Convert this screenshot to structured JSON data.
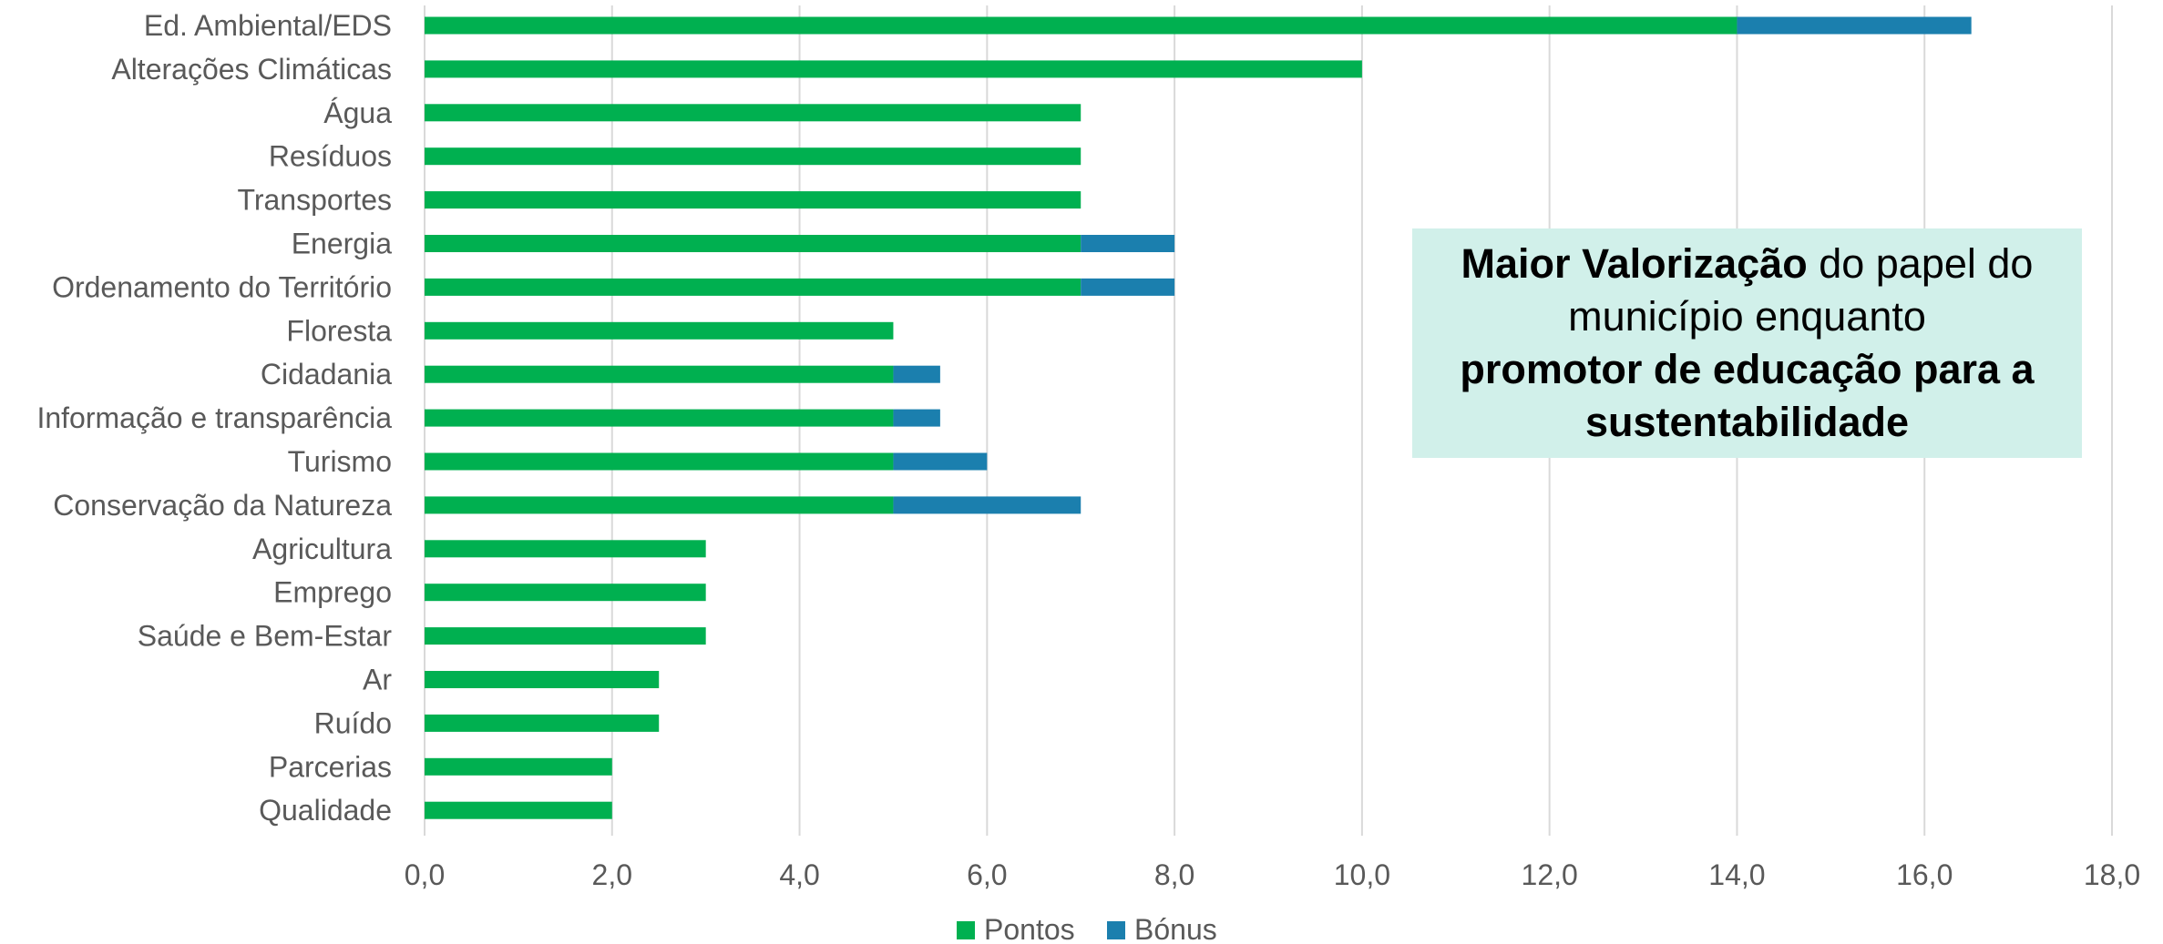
{
  "chart_data": {
    "type": "bar",
    "orientation": "horizontal",
    "stacked": true,
    "categories": [
      "Ed. Ambiental/EDS",
      "Alterações Climáticas",
      "Água",
      "Resíduos",
      "Transportes",
      "Energia",
      "Ordenamento do Território",
      "Floresta",
      "Cidadania",
      "Informação e transparência",
      "Turismo",
      "Conservação da Natureza",
      "Agricultura",
      "Emprego",
      "Saúde e Bem-Estar",
      "Ar",
      "Ruído",
      "Parcerias",
      "Qualidade"
    ],
    "series": [
      {
        "name": "Pontos",
        "color": "#00b050",
        "values": [
          14,
          10,
          7,
          7,
          7,
          7,
          7,
          5,
          5,
          5,
          5,
          5,
          3,
          3,
          3,
          2.5,
          2.5,
          2,
          2
        ]
      },
      {
        "name": "Bónus",
        "color": "#1b7fae",
        "values": [
          2.5,
          0,
          0,
          0,
          0,
          1,
          1,
          0,
          0.5,
          0.5,
          1,
          2,
          0,
          0,
          0,
          0,
          0,
          0,
          0
        ]
      }
    ],
    "xlim": [
      0,
      18
    ],
    "xticks": [
      "0,0",
      "2,0",
      "4,0",
      "6,0",
      "8,0",
      "10,0",
      "12,0",
      "14,0",
      "16,0",
      "18,0"
    ],
    "grid": "vertical",
    "legend": "bottom-center"
  },
  "callout": {
    "bold1": "Maior Valorização",
    "text1": " do papel do município enquanto ",
    "bold2": "promotor de educação para a sustentabilidade",
    "background": "#d1f0ea"
  }
}
